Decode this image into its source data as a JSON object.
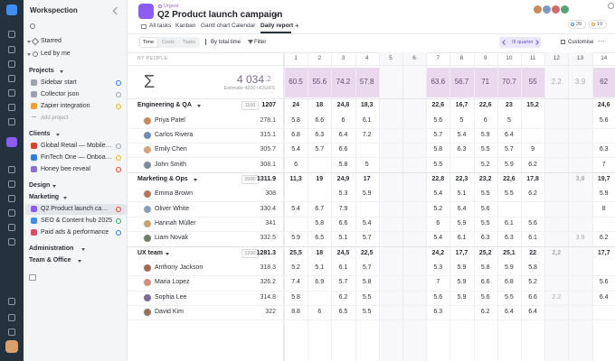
{
  "sidebar": {
    "workspace": "Workspection",
    "starred": "Starred",
    "led_by_me": "Led by me",
    "sections": [
      {
        "title": "Projects",
        "items": [
          "Sidebar start",
          "Collector json",
          "Zapier integration"
        ],
        "add": "Add project"
      },
      {
        "title": "Clients",
        "items": [
          "Global Retail — Mobile app…",
          "FinTech One — Onboarding…",
          "Honey bee reveal"
        ]
      },
      {
        "title": "Design",
        "items": []
      },
      {
        "title": "Marketing",
        "items": [
          "Q2 Product launch campaign",
          "SEO & Content hub 2025",
          "Paid ads & performance"
        ]
      },
      {
        "title": "Administration",
        "items": []
      },
      {
        "title": "Team & Office",
        "items": []
      }
    ]
  },
  "header": {
    "tag": "Urgent",
    "title": "Q2 Product launch campaign",
    "tabs": [
      "All tasks",
      "Kanban",
      "Gantt chart",
      "Calendar",
      "Daily report"
    ],
    "add_tab": "+",
    "counters": [
      "20",
      "19"
    ]
  },
  "toolbar": {
    "modes": [
      "Time",
      "Costs",
      "Tasks"
    ],
    "sort": "By total time",
    "filter": "Filter",
    "period": "III quarter",
    "customise": "Customise",
    "more": "···"
  },
  "table": {
    "group_label": "BY PEOPLE",
    "days": [
      "1",
      "2",
      "3",
      "4",
      "5",
      "6",
      "7",
      "8",
      "9",
      "10",
      "11",
      "12",
      "13",
      "14"
    ],
    "summary": {
      "symbol": "Σ",
      "total": "4 034",
      "total_decimal": ".2",
      "estimate": "Estimate 4200 HOURS",
      "cells": [
        "60.5",
        "55.6",
        "74.2",
        "57.8",
        null,
        null,
        "63.6",
        "56.7",
        "71",
        "70.7",
        "55",
        "2.2",
        "3.9",
        "62"
      ]
    },
    "rows": [
      {
        "kind": "group",
        "name": "Engineering & QA",
        "budget": "1100",
        "total": "1207",
        "cells": [
          "24",
          "18",
          "24,8",
          "18,3",
          null,
          null,
          "22,6",
          "16,7",
          "22,6",
          "23",
          "15,2",
          null,
          null,
          "24,6"
        ]
      },
      {
        "kind": "person",
        "name": "Priya Patel",
        "total": "278.1",
        "cells": [
          "5.8",
          "6.6",
          "6",
          "6.1",
          null,
          null,
          "5.6",
          "5",
          "6",
          "5",
          null,
          null,
          null,
          "5.6"
        ]
      },
      {
        "kind": "person",
        "name": "Carlos Rivera",
        "total": "315.1",
        "cells": [
          "6.8",
          "6.3",
          "6.4",
          "7.2",
          null,
          null,
          "5.7",
          "5.4",
          "5.9",
          "6.4",
          null,
          null,
          null,
          null
        ]
      },
      {
        "kind": "person",
        "name": "Emily Chen",
        "total": "305.7",
        "cells": [
          "5.4",
          "5.7",
          "6.6",
          null,
          null,
          null,
          "5.8",
          "6.3",
          "5.5",
          "5.7",
          "9",
          null,
          null,
          "6.3"
        ]
      },
      {
        "kind": "person",
        "name": "John Smith",
        "total": "308.1",
        "cells": [
          "6",
          null,
          "5.8",
          "5",
          null,
          null,
          "5.5",
          null,
          "5.2",
          "5.9",
          "6.2",
          null,
          null,
          "7"
        ]
      },
      {
        "kind": "group",
        "name": "Marketing & Ops",
        "budget": "2000",
        "total": "1311.9",
        "cells": [
          "11,3",
          "19",
          "24,9",
          "17",
          null,
          null,
          "22,8",
          "22,3",
          "23,2",
          "22,6",
          "17,8",
          null,
          "3,9",
          "19,7"
        ]
      },
      {
        "kind": "person",
        "name": "Emma Brown",
        "total": "308",
        "cells": [
          null,
          null,
          "5.3",
          "5.9",
          null,
          null,
          "5.4",
          "5.1",
          "5.5",
          "5.5",
          "6.2",
          null,
          null,
          "5.9"
        ]
      },
      {
        "kind": "person",
        "name": "Oliver White",
        "total": "330.4",
        "cells": [
          "5.4",
          "6.7",
          "7.9",
          null,
          null,
          null,
          "5.2",
          "6.4",
          "5.6",
          null,
          null,
          null,
          null,
          "8"
        ]
      },
      {
        "kind": "person",
        "name": "Hannah Müller",
        "total": "341",
        "cells": [
          null,
          "5.8",
          "6.6",
          "5.4",
          null,
          null,
          "6",
          "5.9",
          "5.5",
          "6.1",
          "5.6",
          null,
          null,
          null
        ]
      },
      {
        "kind": "person",
        "name": "Liam Novak",
        "total": "332.5",
        "cells": [
          "5.9",
          "6.5",
          "5.1",
          "5.7",
          null,
          null,
          "5.4",
          "6.1",
          "6.3",
          "6.3",
          "6.1",
          null,
          "3.9",
          "6.2"
        ]
      },
      {
        "kind": "group",
        "name": "UX team",
        "budget": "1200",
        "total": "1281.3",
        "cells": [
          "25,5",
          "18",
          "24,5",
          "22,5",
          null,
          null,
          "24,2",
          "17,7",
          "25,2",
          "25,1",
          "22",
          "2,2",
          null,
          "17,7"
        ]
      },
      {
        "kind": "person",
        "name": "Anthony Jackson",
        "total": "318.3",
        "cells": [
          "5.2",
          "5.1",
          "6.1",
          "5.7",
          null,
          null,
          "5.3",
          "5.9",
          "5.8",
          "5.9",
          "5.8",
          null,
          null,
          null
        ]
      },
      {
        "kind": "person",
        "name": "Maria Lopez",
        "total": "326.2",
        "cells": [
          "7.4",
          "6.9",
          "5.7",
          "5.8",
          null,
          null,
          "7",
          "5.9",
          "6.6",
          "6.8",
          "5.2",
          null,
          null,
          "5.6"
        ]
      },
      {
        "kind": "person",
        "name": "Sophia Lee",
        "total": "314.8",
        "cells": [
          "5.8",
          null,
          "6.2",
          "5.5",
          null,
          null,
          "5.6",
          "5.9",
          "5.6",
          "5.5",
          "6.6",
          "2.2",
          null,
          "6.4"
        ]
      },
      {
        "kind": "person",
        "name": "David Kim",
        "total": "322",
        "cells": [
          "8.8",
          "6",
          "6.5",
          "5.5",
          null,
          null,
          "6.3",
          null,
          "6.2",
          "6.4",
          "6.4",
          null,
          null,
          null
        ]
      }
    ]
  }
}
